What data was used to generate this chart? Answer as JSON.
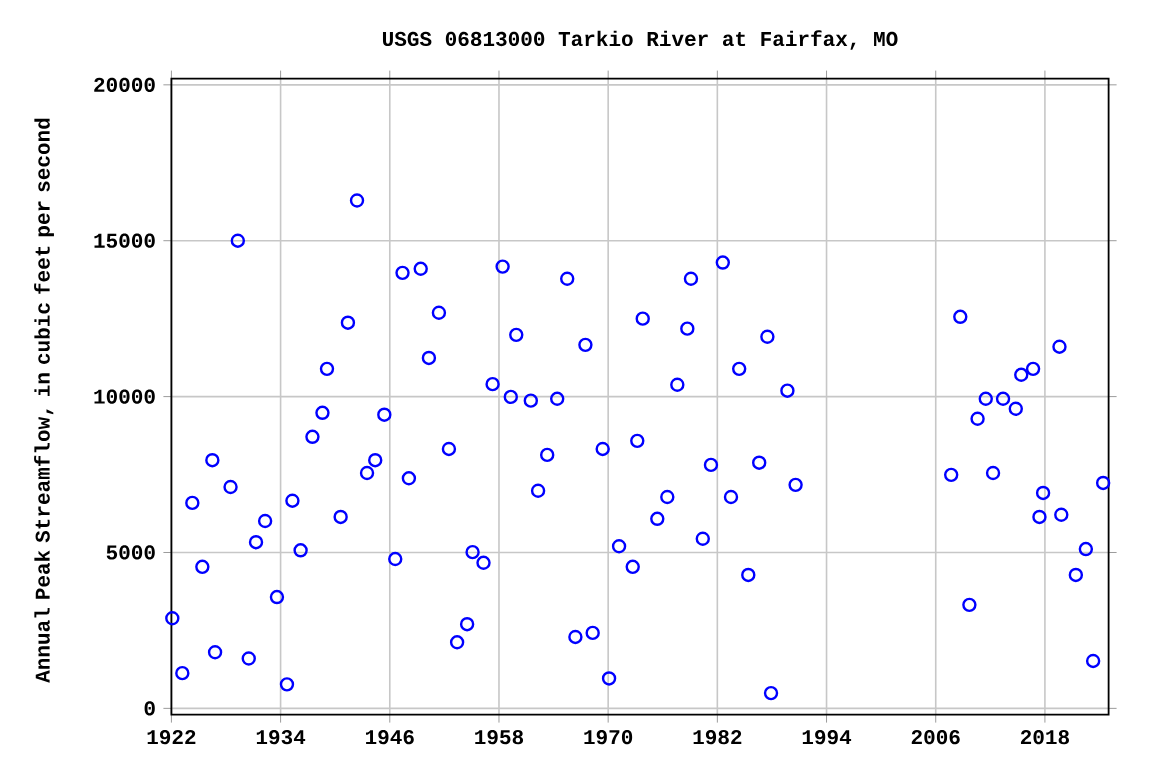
{
  "chart_data": {
    "type": "scatter",
    "title": "USGS 06813000 Tarkio River at Fairfax, MO",
    "ylabel": "Annual Peak Streamflow, in cubic feet per second",
    "x": [
      1922.1,
      1923.2,
      1924.3,
      1925.4,
      1926.5,
      1926.8,
      1928.5,
      1929.3,
      1930.5,
      1931.3,
      1932.3,
      1933.6,
      1934.7,
      1935.3,
      1936.2,
      1937.5,
      1938.6,
      1939.1,
      1940.6,
      1941.4,
      1942.4,
      1943.5,
      1944.4,
      1945.4,
      1946.6,
      1947.4,
      1948.1,
      1949.4,
      1950.3,
      1951.4,
      1952.5,
      1953.4,
      1954.5,
      1955.1,
      1956.3,
      1957.3,
      1958.4,
      1959.3,
      1959.9,
      1961.5,
      1962.3,
      1963.3,
      1964.4,
      1965.5,
      1966.4,
      1967.5,
      1968.3,
      1969.4,
      1970.1,
      1971.2,
      1972.7,
      1973.2,
      1973.8,
      1975.4,
      1976.5,
      1977.6,
      1978.7,
      1979.1,
      1980.4,
      1981.3,
      1982.6,
      1983.5,
      1984.4,
      1985.4,
      1986.6,
      1987.5,
      1987.9,
      1989.7,
      1990.6,
      2007.7,
      2008.7,
      2009.7,
      2010.6,
      2011.5,
      2012.3,
      2013.4,
      2014.8,
      2015.4,
      2016.7,
      2017.4,
      2017.8,
      2019.6,
      2019.8,
      2021.4,
      2022.5,
      2023.3,
      2024.4
    ],
    "values": [
      2890,
      1130,
      6590,
      4540,
      7960,
      1800,
      7100,
      15000,
      1600,
      5330,
      6010,
      3570,
      770,
      6660,
      5070,
      8710,
      9480,
      10890,
      6140,
      12370,
      16290,
      7550,
      7960,
      9420,
      4790,
      13970,
      7380,
      14100,
      11240,
      12690,
      8320,
      2120,
      2700,
      5010,
      4670,
      10400,
      14170,
      9990,
      11980,
      9870,
      6980,
      8130,
      9930,
      13780,
      2290,
      11660,
      2420,
      8320,
      960,
      5200,
      4540,
      8580,
      12500,
      6080,
      6780,
      10380,
      12180,
      13780,
      5440,
      7810,
      14300,
      6780,
      10890,
      4280,
      7880,
      11920,
      490,
      10190,
      7170,
      7490,
      12560,
      3320,
      9290,
      9930,
      7550,
      9930,
      9610,
      10700,
      10890,
      6140,
      6910,
      11600,
      6210,
      4280,
      5110,
      1520,
      7230
    ],
    "color": "#0000ff",
    "marker": "circle",
    "xlim": [
      1922,
      2025
    ],
    "ylim": [
      -200,
      20200
    ],
    "xticks": [
      1922,
      1934,
      1946,
      1958,
      1970,
      1982,
      1994,
      2006,
      2018
    ],
    "yticks": [
      0,
      5000,
      10000,
      15000,
      20000
    ],
    "grid": true
  }
}
